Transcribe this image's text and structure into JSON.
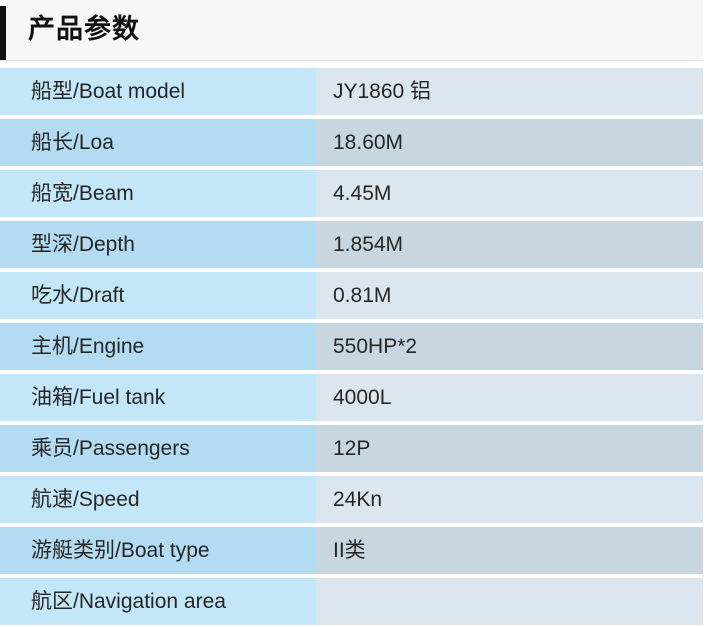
{
  "header": {
    "title": "产品参数"
  },
  "specs": [
    {
      "label": "船型/Boat model",
      "value": "JY1860 铝"
    },
    {
      "label": "船长/Loa",
      "value": "18.60M"
    },
    {
      "label": "船宽/Beam",
      "value": "4.45M"
    },
    {
      "label": "型深/Depth",
      "value": "1.854M"
    },
    {
      "label": "吃水/Draft",
      "value": "0.81M"
    },
    {
      "label": "主机/Engine",
      "value": "550HP*2"
    },
    {
      "label": "油箱/Fuel tank",
      "value": "4000L"
    },
    {
      "label": "乘员/Passengers",
      "value": "12P"
    },
    {
      "label": "航速/Speed",
      "value": "24Kn"
    },
    {
      "label": "游艇类别/Boat type",
      "value": "II类"
    },
    {
      "label": "航区/Navigation area",
      "value": ""
    }
  ]
}
